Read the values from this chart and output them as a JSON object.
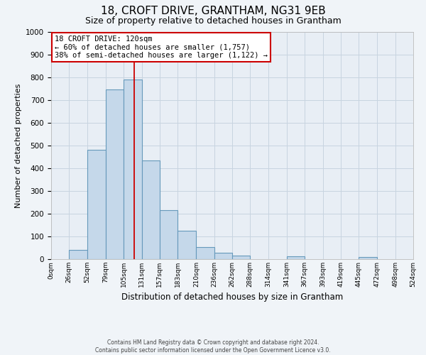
{
  "title": "18, CROFT DRIVE, GRANTHAM, NG31 9EB",
  "subtitle": "Size of property relative to detached houses in Grantham",
  "xlabel": "Distribution of detached houses by size in Grantham",
  "ylabel": "Number of detached properties",
  "bar_left_edges": [
    0,
    26,
    52,
    79,
    105,
    131,
    157,
    183,
    210,
    236,
    262,
    288,
    314,
    341,
    367,
    393,
    419,
    445,
    472,
    498
  ],
  "bar_widths": [
    26,
    26,
    27,
    26,
    26,
    26,
    26,
    27,
    26,
    26,
    26,
    26,
    27,
    26,
    26,
    26,
    26,
    27,
    26,
    26
  ],
  "bar_heights": [
    0,
    42,
    482,
    748,
    790,
    435,
    217,
    126,
    52,
    28,
    15,
    0,
    0,
    12,
    0,
    0,
    0,
    10,
    0,
    0
  ],
  "bar_color": "#c5d8ea",
  "bar_edge_color": "#6699bb",
  "xtick_labels": [
    "0sqm",
    "26sqm",
    "52sqm",
    "79sqm",
    "105sqm",
    "131sqm",
    "157sqm",
    "183sqm",
    "210sqm",
    "236sqm",
    "262sqm",
    "288sqm",
    "314sqm",
    "341sqm",
    "367sqm",
    "393sqm",
    "419sqm",
    "445sqm",
    "472sqm",
    "498sqm",
    "524sqm"
  ],
  "ylim": [
    0,
    1000
  ],
  "yticks": [
    0,
    100,
    200,
    300,
    400,
    500,
    600,
    700,
    800,
    900,
    1000
  ],
  "vline_x": 120,
  "vline_color": "#cc0000",
  "annotation_title": "18 CROFT DRIVE: 120sqm",
  "annotation_line1": "← 60% of detached houses are smaller (1,757)",
  "annotation_line2": "38% of semi-detached houses are larger (1,122) →",
  "annotation_box_facecolor": "#ffffff",
  "annotation_box_edgecolor": "#cc0000",
  "grid_color": "#c8d4e0",
  "plot_bg_color": "#e8eef5",
  "fig_bg_color": "#f0f4f8",
  "title_fontsize": 11,
  "subtitle_fontsize": 9,
  "footer_line1": "Contains HM Land Registry data © Crown copyright and database right 2024.",
  "footer_line2": "Contains public sector information licensed under the Open Government Licence v3.0."
}
